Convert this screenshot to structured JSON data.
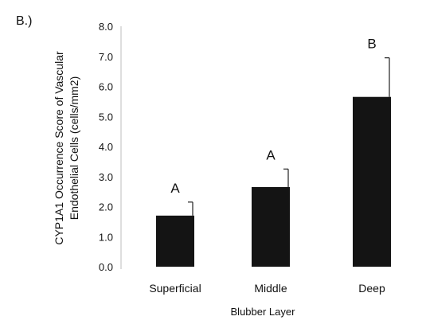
{
  "panel_label": "B.)",
  "chart_data": {
    "type": "bar",
    "title": "",
    "xlabel": "Blubber Layer",
    "ylabel_line1": "CYP1A1 Occurrence Score of Vascular",
    "ylabel_line2": "Endothelial Cells (cells/mm2)",
    "categories": [
      "Superficial",
      "Middle",
      "Deep"
    ],
    "values": [
      1.7,
      2.65,
      5.65
    ],
    "errors": [
      0.45,
      0.6,
      1.3
    ],
    "significance_letters": [
      "A",
      "A",
      "B"
    ],
    "ylim": [
      0,
      8
    ],
    "yticks": [
      "0.0",
      "1.0",
      "2.0",
      "3.0",
      "4.0",
      "5.0",
      "6.0",
      "7.0",
      "8.0"
    ],
    "grid": false,
    "bar_color": "#141414"
  }
}
